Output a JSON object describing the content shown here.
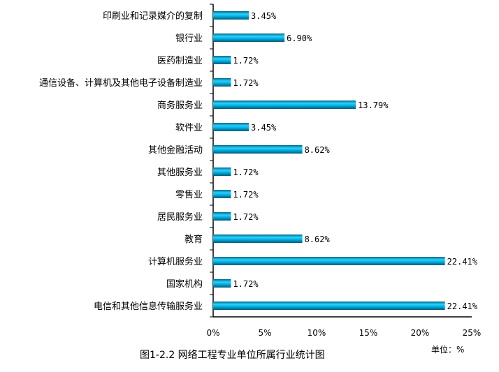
{
  "chart_data": {
    "type": "bar",
    "orientation": "horizontal",
    "title": "图1-2.2 网络工程专业单位所属行业统计图",
    "unit_label": "单位：%",
    "categories": [
      "印刷业和记录媒介的复制",
      "银行业",
      "医药制造业",
      "通信设备、计算机及其他电子设备制造业",
      "商务服务业",
      "软件业",
      "其他金融活动",
      "其他服务业",
      "零售业",
      "居民服务业",
      "教育",
      "计算机服务业",
      "国家机构",
      "电信和其他信息传输服务业"
    ],
    "values": [
      3.45,
      6.9,
      1.72,
      1.72,
      13.79,
      3.45,
      8.62,
      1.72,
      1.72,
      1.72,
      8.62,
      22.41,
      1.72,
      22.41
    ],
    "value_labels": [
      "3.45%",
      "6.90%",
      "1.72%",
      "1.72%",
      "13.79%",
      "3.45%",
      "8.62%",
      "1.72%",
      "1.72%",
      "1.72%",
      "8.62%",
      "22.41%",
      "1.72%",
      "22.41%"
    ],
    "xlim": [
      0,
      25
    ],
    "xticks": [
      0,
      5,
      10,
      15,
      20,
      25
    ],
    "xtick_labels": [
      "0%",
      "5%",
      "10%",
      "15%",
      "20%",
      "25%"
    ],
    "bar_color": "#00b0e0",
    "grid": false
  }
}
